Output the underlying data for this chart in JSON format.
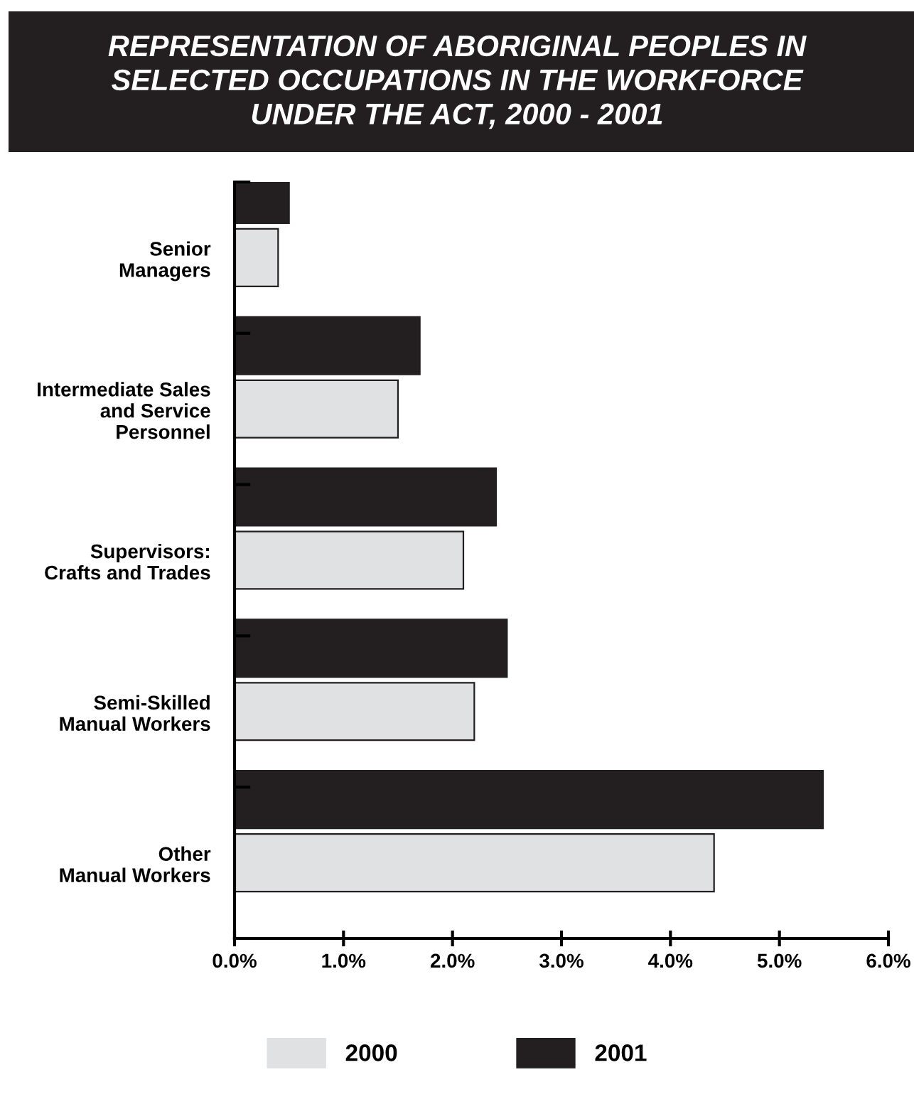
{
  "chart_data": {
    "type": "bar",
    "orientation": "horizontal",
    "title": "REPRESENTATION OF ABORIGINAL PEOPLES IN\nSELECTED OCCUPATIONS IN THE WORKFORCE\nUNDER THE ACT, 2000 - 2001",
    "categories": [
      "Senior\nManagers",
      "Intermediate Sales\nand Service\nPersonnel",
      "Supervisors:\nCrafts and Trades",
      "Semi-Skilled\nManual Workers",
      "Other\nManual Workers"
    ],
    "series": [
      {
        "name": "2001",
        "color": "#231f20",
        "values": [
          0.5,
          1.7,
          2.4,
          2.5,
          5.4
        ]
      },
      {
        "name": "2000",
        "color": "#e0e1e3",
        "values": [
          0.4,
          1.5,
          2.1,
          2.2,
          4.4
        ]
      }
    ],
    "xlim": [
      0,
      6
    ],
    "xticks": [
      {
        "value": 0,
        "label": "0.0%"
      },
      {
        "value": 1,
        "label": "1.0%"
      },
      {
        "value": 2,
        "label": "2.0%"
      },
      {
        "value": 3,
        "label": "3.0%"
      },
      {
        "value": 4,
        "label": "4.0%"
      },
      {
        "value": 5,
        "label": "5.0%"
      },
      {
        "value": 6,
        "label": "6.0%"
      }
    ],
    "grid": false,
    "legend": "bottom"
  }
}
